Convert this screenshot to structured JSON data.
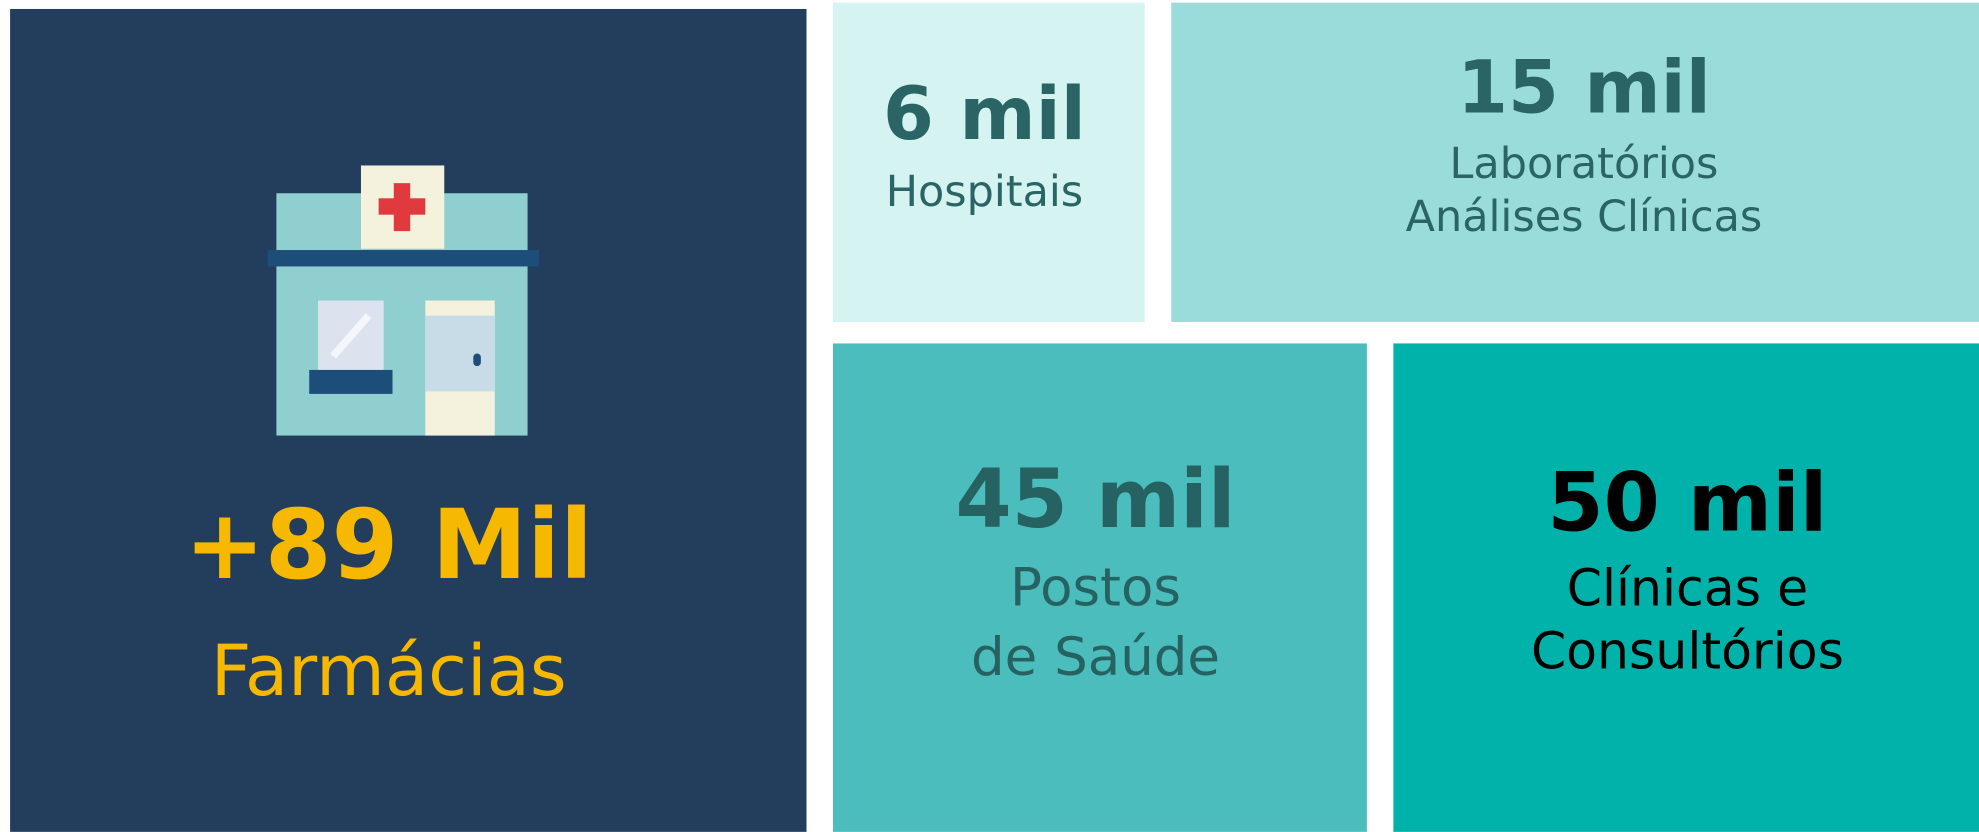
{
  "main": {
    "value": "+89 Mil",
    "label": "Farmácias"
  },
  "tiles": [
    {
      "value": "6 mil",
      "label": [
        "Hospitais"
      ]
    },
    {
      "value": "15 mil",
      "label": [
        "Laboratórios",
        "Análises Clínicas"
      ]
    },
    {
      "value": "45 mil",
      "label": [
        "Postos",
        "de Saúde"
      ]
    },
    {
      "value": "50 mil",
      "label": [
        "Clínicas e",
        "Consultórios"
      ]
    }
  ]
}
